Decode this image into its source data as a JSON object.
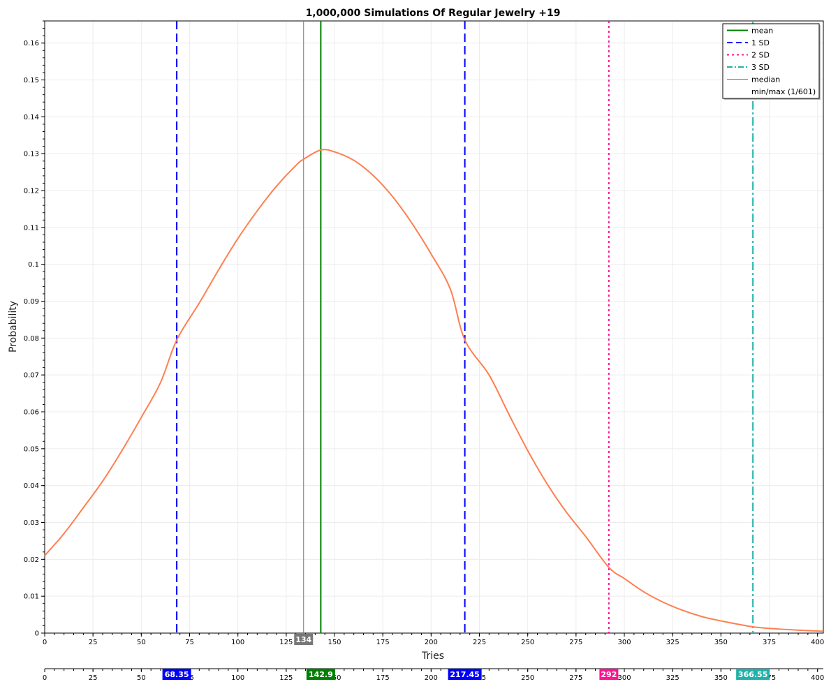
{
  "chart_data": {
    "type": "line",
    "title": "1,000,000 Simulations Of Regular Jewelry +19",
    "xlabel": "Tries",
    "ylabel": "Probability",
    "xlim": [
      0,
      403
    ],
    "ylim": [
      0,
      0.166
    ],
    "x_ticks": [
      0,
      25,
      50,
      75,
      100,
      125,
      150,
      175,
      200,
      225,
      250,
      275,
      300,
      325,
      350,
      375,
      400
    ],
    "y_ticks": [
      0,
      0.01,
      0.02,
      0.03,
      0.04,
      0.05,
      0.06,
      0.07,
      0.08,
      0.09,
      0.1,
      0.11,
      0.12,
      0.13,
      0.14,
      0.15,
      0.16
    ],
    "x_tick_labels": [
      "0",
      "25",
      "50",
      "75",
      "100",
      "125",
      "150",
      "175",
      "200",
      "225",
      "250",
      "275",
      "300",
      "325",
      "350",
      "375",
      "400"
    ],
    "y_tick_labels": [
      "0",
      "0.01",
      "0.02",
      "0.03",
      "0.04",
      "0.05",
      "0.06",
      "0.07",
      "0.08",
      "0.09",
      "0.1",
      "0.11",
      "0.12",
      "0.13",
      "0.14",
      "0.15",
      "0.16"
    ],
    "grid": true,
    "legend_position": "top-right",
    "series": [
      {
        "color": "#ff7f50",
        "x": [
          0,
          10,
          20,
          30,
          40,
          50,
          60,
          68.35,
          80,
          90,
          100,
          110,
          120,
          130,
          134,
          142.9,
          150,
          160,
          170,
          180,
          190,
          200,
          210,
          217.45,
          230,
          240,
          250,
          260,
          270,
          280,
          292,
          300,
          310,
          320,
          330,
          340,
          350,
          366.55,
          380,
          390,
          403
        ],
        "y": [
          0.021,
          0.027,
          0.034,
          0.0412,
          0.0495,
          0.0585,
          0.068,
          0.0795,
          0.0895,
          0.0985,
          0.107,
          0.1145,
          0.1212,
          0.1268,
          0.1285,
          0.131,
          0.1305,
          0.1282,
          0.1241,
          0.1184,
          0.1112,
          0.1028,
          0.0932,
          0.0795,
          0.07,
          0.0596,
          0.0495,
          0.0405,
          0.0328,
          0.0262,
          0.0178,
          0.0148,
          0.0112,
          0.0084,
          0.0062,
          0.0045,
          0.0033,
          0.0017,
          0.0011,
          0.0008,
          0.0005
        ]
      }
    ],
    "vlines": [
      {
        "key": "median",
        "x": 134,
        "color": "#777777",
        "style": "thin",
        "label": "134"
      },
      {
        "key": "mean",
        "x": 142.9,
        "color": "#008000",
        "style": "solid",
        "label": "142.9"
      },
      {
        "key": "sd1-low",
        "x": 68.35,
        "color": "#0000ff",
        "style": "dashed",
        "label": "68.35"
      },
      {
        "key": "sd1-high",
        "x": 217.45,
        "color": "#0000ff",
        "style": "dashed",
        "label": "217.45"
      },
      {
        "key": "sd2",
        "x": 292,
        "color": "#ff1493",
        "style": "dotted",
        "label": "292"
      },
      {
        "key": "sd3",
        "x": 366.55,
        "color": "#20b2aa",
        "style": "dashdot",
        "label": "366.55"
      }
    ],
    "legend": [
      {
        "label": "mean",
        "color": "#008000",
        "style": "solid"
      },
      {
        "label": "1 SD",
        "color": "#0000ff",
        "style": "dashed"
      },
      {
        "label": "2 SD",
        "color": "#ff1493",
        "style": "dotted"
      },
      {
        "label": "3 SD",
        "color": "#20b2aa",
        "style": "dashdot"
      },
      {
        "label": "median",
        "color": "#777777",
        "style": "thin"
      },
      {
        "label": "min/max (1/601)",
        "color": "none",
        "style": "none"
      }
    ]
  }
}
